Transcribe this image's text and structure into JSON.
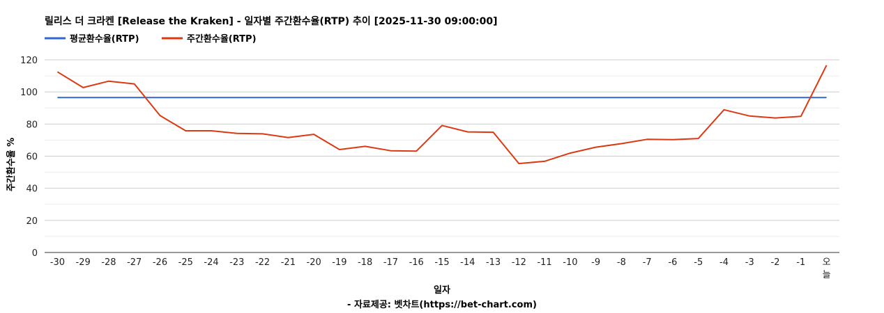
{
  "chart_data": {
    "type": "line",
    "title": "릴리스 더 크라켄 [Release the Kraken] - 일자별 주간환수율(RTP) 추이 [2025-11-30 09:00:00]",
    "xlabel": "일자",
    "ylabel": "주간환수율 %",
    "credit": "- 자료제공: 벳차트(https://bet-chart.com)",
    "legend_position": "top-left",
    "grid": true,
    "ylim": [
      0,
      120
    ],
    "yticks": [
      "0",
      "20",
      "40",
      "60",
      "80",
      "100",
      "120"
    ],
    "categories": [
      "-30",
      "-29",
      "-28",
      "-27",
      "-26",
      "-25",
      "-24",
      "-23",
      "-22",
      "-21",
      "-20",
      "-19",
      "-18",
      "-17",
      "-16",
      "-15",
      "-14",
      "-13",
      "-12",
      "-11",
      "-10",
      "-9",
      "-8",
      "-7",
      "-6",
      "-5",
      "-4",
      "-3",
      "-2",
      "-1",
      "오늘"
    ],
    "series": [
      {
        "name": "평균환수율(RTP)",
        "color": "#3366cc",
        "values": [
          96.5,
          96.5,
          96.5,
          96.5,
          96.5,
          96.5,
          96.5,
          96.5,
          96.5,
          96.5,
          96.5,
          96.5,
          96.5,
          96.5,
          96.5,
          96.5,
          96.5,
          96.5,
          96.5,
          96.5,
          96.5,
          96.5,
          96.5,
          96.5,
          96.5,
          96.5,
          96.5,
          96.5,
          96.5,
          96.5,
          96.5
        ]
      },
      {
        "name": "주간환수율(RTP)",
        "color": "#dc3912",
        "values": [
          112.5,
          102.7,
          106.7,
          105.0,
          85.3,
          75.8,
          75.8,
          74.2,
          73.9,
          71.6,
          73.6,
          64.1,
          66.1,
          63.4,
          63.1,
          79.1,
          75.1,
          74.9,
          55.4,
          56.8,
          61.9,
          65.6,
          67.8,
          70.5,
          70.3,
          71.0,
          88.9,
          85.0,
          83.8,
          84.8,
          116.6
        ]
      }
    ]
  }
}
